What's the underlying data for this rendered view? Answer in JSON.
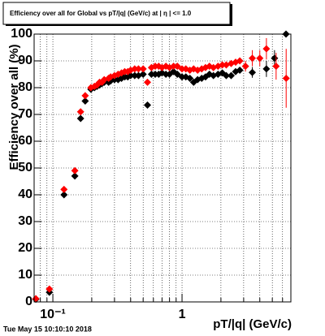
{
  "chart_data": {
    "type": "scatter",
    "title": "Efficiency over all for Global vs pT/|q| (GeV/c) at | η | <= 1.0",
    "x_label": "pT/|q| (GeV/c)",
    "y_label": "Efficiency over all (%)",
    "timestamp": "Tue May 15 10:10:10 2018",
    "log_x": true,
    "grid": true,
    "xlim": [
      0.0716,
      6.96
    ],
    "ylim": [
      0,
      100
    ],
    "xticks": [
      {
        "value": 0.1,
        "label": "10⁻¹"
      },
      1
    ],
    "x_grid": [
      0.08,
      0.09,
      0.2,
      0.3,
      0.4,
      0.5,
      0.6,
      0.7,
      0.8,
      0.9,
      2,
      3,
      4,
      5,
      6
    ],
    "yticks": [
      0,
      10,
      20,
      30,
      40,
      50,
      60,
      70,
      80,
      90,
      100
    ],
    "series": [
      {
        "name": "Black",
        "color": "#000000",
        "x": [
          0.0738,
          0.094,
          0.122,
          0.148,
          0.164,
          0.178,
          0.197,
          0.21,
          0.22,
          0.23,
          0.24,
          0.25,
          0.27,
          0.28,
          0.3,
          0.32,
          0.34,
          0.36,
          0.38,
          0.4,
          0.43,
          0.46,
          0.5,
          0.54,
          0.58,
          0.62,
          0.66,
          0.7,
          0.75,
          0.8,
          0.86,
          0.92,
          1.0,
          1.07,
          1.15,
          1.23,
          1.32,
          1.42,
          1.52,
          1.63,
          1.75,
          1.9,
          2.05,
          2.2,
          2.4,
          2.6,
          2.8,
          3.5,
          4.5,
          5.2,
          6.38
        ],
        "values": [
          1,
          3.6,
          40,
          47,
          68.5,
          75,
          79.4,
          80,
          80.5,
          81,
          81.5,
          82,
          82,
          82.5,
          83,
          83,
          83.5,
          84,
          84,
          84.5,
          84.5,
          84.5,
          85,
          73.5,
          85,
          85,
          85,
          85.5,
          85,
          85,
          86,
          85,
          84,
          84,
          83.5,
          82,
          83,
          83.5,
          84,
          85,
          84.5,
          85,
          85.5,
          84.5,
          84.5,
          86,
          86.5,
          85.7,
          87,
          91,
          100
        ],
        "errors": [
          null,
          null,
          null,
          null,
          null,
          null,
          null,
          null,
          null,
          null,
          null,
          null,
          null,
          null,
          null,
          null,
          null,
          null,
          null,
          null,
          null,
          null,
          null,
          null,
          null,
          null,
          null,
          null,
          null,
          null,
          null,
          null,
          null,
          null,
          null,
          null,
          null,
          null,
          null,
          null,
          null,
          null,
          null,
          null,
          null,
          null,
          null,
          2,
          3,
          3,
          null
        ]
      },
      {
        "name": "Red",
        "color": "#ff0000",
        "x": [
          0.0738,
          0.094,
          0.122,
          0.148,
          0.164,
          0.178,
          0.197,
          0.21,
          0.22,
          0.23,
          0.24,
          0.25,
          0.27,
          0.28,
          0.3,
          0.32,
          0.34,
          0.36,
          0.38,
          0.4,
          0.43,
          0.46,
          0.5,
          0.54,
          0.58,
          0.62,
          0.66,
          0.7,
          0.75,
          0.8,
          0.86,
          0.92,
          1.0,
          1.07,
          1.15,
          1.23,
          1.32,
          1.42,
          1.52,
          1.63,
          1.75,
          1.9,
          2.05,
          2.2,
          2.4,
          2.6,
          2.8,
          3.1,
          3.5,
          4.0,
          4.5,
          5.35,
          6.4
        ],
        "values": [
          1.2,
          4.8,
          42,
          49,
          71,
          77,
          80,
          80.5,
          81,
          82,
          82,
          83,
          83.5,
          84,
          84.5,
          85,
          85.5,
          86,
          86,
          86.5,
          87,
          87,
          87,
          82,
          87.5,
          88,
          88,
          87.5,
          88,
          87.5,
          88,
          88,
          87,
          87,
          86.5,
          87,
          86.5,
          87,
          87.5,
          88,
          87.5,
          88,
          88.5,
          88.5,
          89,
          89.5,
          90,
          88,
          91,
          91,
          94.5,
          88,
          83.5
        ],
        "errors": [
          null,
          null,
          null,
          null,
          null,
          null,
          null,
          null,
          null,
          null,
          null,
          null,
          null,
          null,
          null,
          null,
          null,
          null,
          null,
          null,
          null,
          null,
          null,
          null,
          null,
          null,
          null,
          null,
          null,
          null,
          null,
          null,
          null,
          null,
          null,
          null,
          null,
          null,
          null,
          null,
          null,
          null,
          null,
          null,
          null,
          null,
          null,
          2,
          3,
          3,
          4,
          5,
          11
        ]
      }
    ]
  }
}
